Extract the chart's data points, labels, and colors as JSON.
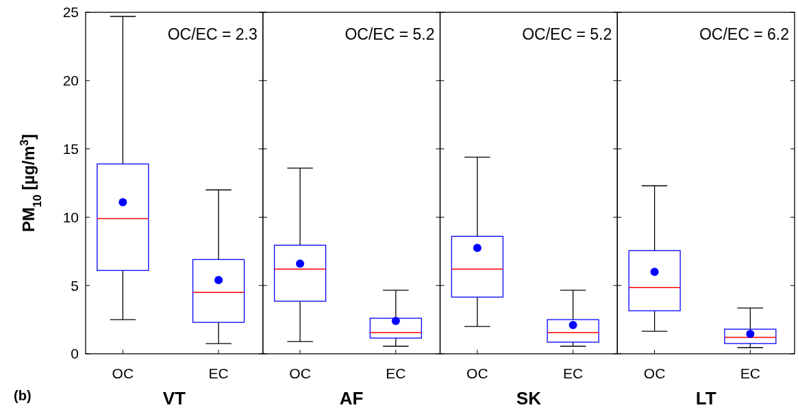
{
  "chart_data": [
    {
      "type": "box",
      "categories": [
        "OC",
        "EC"
      ],
      "xlabel": "VT",
      "ylabel": "PM$_{10}$ [µg/m$^{3}$]",
      "color": "#0000ff",
      "ylim": [
        0,
        25
      ],
      "yticks": [
        0,
        5,
        10,
        15,
        20,
        25
      ],
      "tick_labels": true,
      "annotations": [
        "OC/EC = 2.3",
        "(b)"
      ],
      "boxes": [
        {
          "low": 2.5,
          "q1": 6.1,
          "median": 9.9,
          "q3": 13.9,
          "high": 24.7,
          "mean": 11.1
        },
        {
          "low": 0.75,
          "q1": 2.3,
          "median": 4.5,
          "q3": 6.9,
          "high": 12.0,
          "mean": 5.4
        }
      ]
    },
    {
      "type": "box",
      "categories": [
        "OC",
        "EC"
      ],
      "xlabel": "AF",
      "color": "#0000ff",
      "ylim": [
        0,
        25
      ],
      "yticks": [
        0,
        5,
        10,
        15,
        20,
        25
      ],
      "tick_labels": "x",
      "annotations": [
        "OC/EC = 5.2"
      ],
      "boxes": [
        {
          "low": 0.9,
          "q1": 3.85,
          "median": 6.2,
          "q3": 7.95,
          "high": 13.6,
          "mean": 6.6
        },
        {
          "low": 0.55,
          "q1": 1.15,
          "median": 1.55,
          "q3": 2.6,
          "high": 4.65,
          "mean": 2.4
        }
      ]
    },
    {
      "type": "box",
      "categories": [
        "OC",
        "EC"
      ],
      "xlabel": "SK",
      "color": "#0000ff",
      "ylim": [
        0,
        25
      ],
      "yticks": [
        0,
        5,
        10,
        15,
        20,
        25
      ],
      "tick_labels": "x",
      "annotations": [
        "OC/EC = 5.2"
      ],
      "boxes": [
        {
          "low": 2.0,
          "q1": 4.15,
          "median": 6.2,
          "q3": 8.6,
          "high": 14.4,
          "mean": 7.75
        },
        {
          "low": 0.55,
          "q1": 0.85,
          "median": 1.55,
          "q3": 2.5,
          "high": 4.65,
          "mean": 2.1
        }
      ]
    },
    {
      "type": "box",
      "categories": [
        "OC",
        "EC"
      ],
      "xlabel": "LT",
      "color": "#0000ff",
      "ylim": [
        0,
        25
      ],
      "yticks": [
        0,
        5,
        10,
        15,
        20,
        25
      ],
      "tick_labels": "x",
      "annotations": [
        "OC/EC = 6.2"
      ],
      "boxes": [
        {
          "low": 1.65,
          "q1": 3.15,
          "median": 4.85,
          "q3": 7.55,
          "high": 12.3,
          "mean": 6.0
        },
        {
          "low": 0.45,
          "q1": 0.75,
          "median": 1.2,
          "q3": 1.8,
          "high": 3.35,
          "mean": 1.45
        }
      ]
    }
  ]
}
